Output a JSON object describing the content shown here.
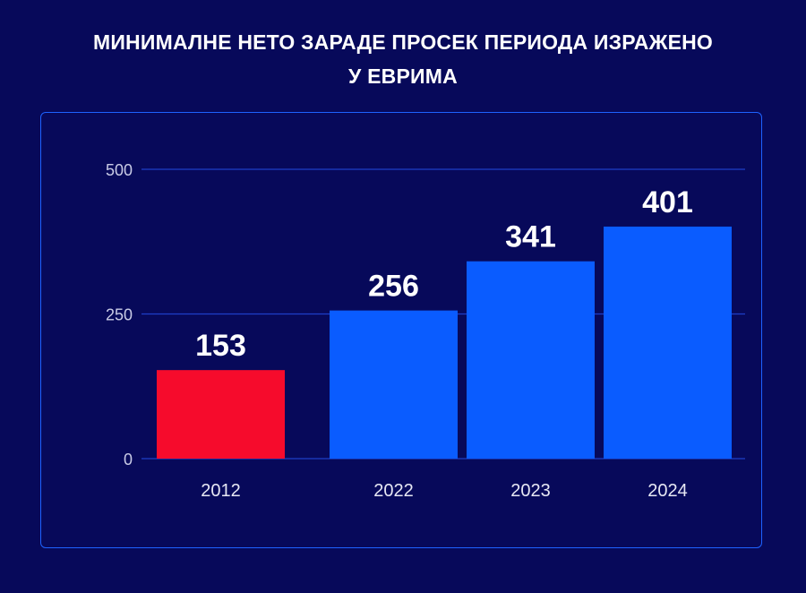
{
  "title_lines": [
    "МИНИМАЛНЕ НЕТО ЗАРАДЕ ПРОСЕК ПЕРИОДА ИЗРАЖЕНО",
    "У ЕВРИМА"
  ],
  "chart_data": {
    "type": "bar",
    "categories": [
      "2012",
      "2022",
      "2023",
      "2024"
    ],
    "values": [
      153,
      256,
      341,
      401
    ],
    "data_labels": [
      "153",
      "256",
      "341",
      "401"
    ],
    "bar_colors": [
      "#f60b2c",
      "#0a5cff",
      "#0a5cff",
      "#0a5cff"
    ],
    "ylim": [
      0,
      500
    ],
    "yticks": [
      0,
      250,
      500
    ],
    "ytick_labels": [
      "0",
      "250",
      "500"
    ],
    "grid": true,
    "title": "",
    "xlabel": "",
    "ylabel": ""
  },
  "colors": {
    "background": "#07095a",
    "panel_border": "#1e62ff",
    "grid": "#1e3fc8"
  }
}
